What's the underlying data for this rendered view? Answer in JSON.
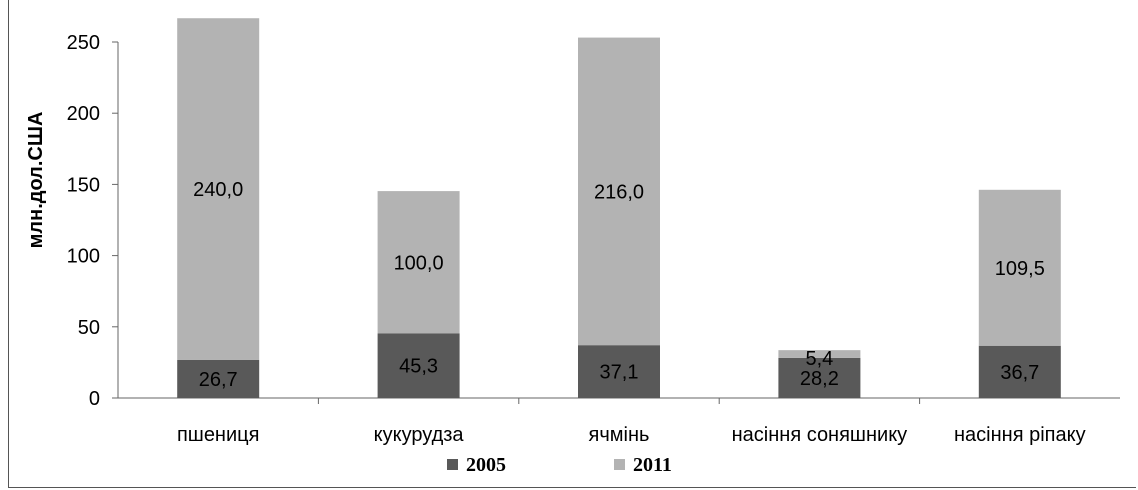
{
  "chart_data": {
    "type": "bar",
    "stacked": true,
    "categories": [
      "пшениця",
      "кукурудза",
      "ячмінь",
      "насіння соняшнику",
      "насіння ріпаку"
    ],
    "series": [
      {
        "name": "2005",
        "values": [
          26.7,
          45.3,
          37.1,
          28.2,
          36.7
        ],
        "labels": [
          "26,7",
          "45,3",
          "37,1",
          "28,2",
          "36,7"
        ],
        "color": "#595959"
      },
      {
        "name": "2011",
        "values": [
          240.0,
          100.0,
          216.0,
          5.4,
          109.5
        ],
        "labels": [
          "240,0",
          "100,0",
          "216,0",
          "5,4",
          "109,5"
        ],
        "color": "#b3b3b3"
      }
    ],
    "ylabel": "млн.дол.США",
    "ylim": [
      0,
      250
    ],
    "yticks": [
      0,
      50,
      100,
      150,
      200,
      250
    ],
    "grid": false,
    "legend_position": "bottom"
  }
}
